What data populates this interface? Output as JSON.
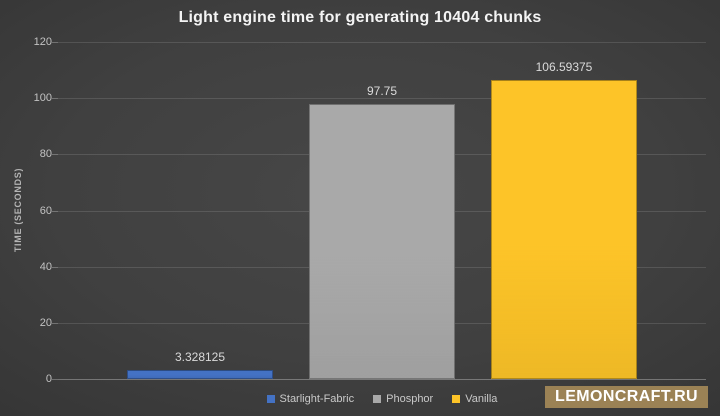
{
  "chart_data": {
    "type": "bar",
    "title": "Light engine time for generating 10404 chunks",
    "xlabel": "",
    "ylabel": "TIME (SECONDS)",
    "categories": [
      "Starlight-Fabric",
      "Phosphor",
      "Vanilla"
    ],
    "values": [
      3.328125,
      97.75,
      106.59375
    ],
    "value_labels": [
      "3.328125",
      "97.75",
      "106.59375"
    ],
    "bar_colors": [
      "#4472c4",
      "#a9a9a9",
      "#fdc428"
    ],
    "ylim": [
      0,
      120
    ],
    "yticks": [
      0,
      20,
      40,
      60,
      80,
      100,
      120
    ],
    "grid": true,
    "legend_position": "bottom"
  },
  "legend": {
    "items": [
      {
        "label": "Starlight-Fabric",
        "color": "#4472c4"
      },
      {
        "label": "Phosphor",
        "color": "#a9a9a9"
      },
      {
        "label": "Vanilla",
        "color": "#fdc428"
      }
    ]
  },
  "watermark": {
    "label": "LEMONCRAFT.RU",
    "bg_color": "#9b8255"
  }
}
